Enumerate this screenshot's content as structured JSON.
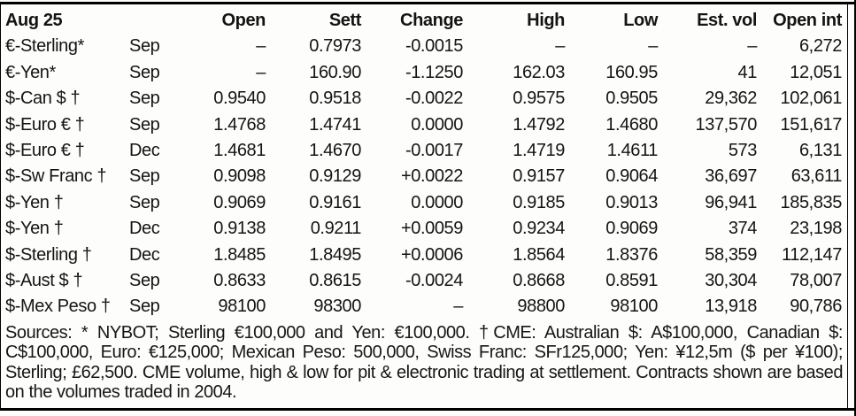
{
  "page": {
    "background_color": "#fdfdfc",
    "text_color": "#141414",
    "rule_color": "#000000"
  },
  "table": {
    "header": [
      "Aug 25",
      "",
      "Open",
      "Sett",
      "Change",
      "High",
      "Low",
      "Est. vol",
      "Open int"
    ],
    "rows": [
      [
        "€-Sterling*",
        "Sep",
        "–",
        "0.7973",
        "-0.0015",
        "–",
        "–",
        "–",
        "6,272"
      ],
      [
        "€-Yen*",
        "Sep",
        "–",
        "160.90",
        "-1.1250",
        "162.03",
        "160.95",
        "41",
        "12,051"
      ],
      [
        "$-Can $ †",
        "Sep",
        "0.9540",
        "0.9518",
        "-0.0022",
        "0.9575",
        "0.9505",
        "29,362",
        "102,061"
      ],
      [
        "$-Euro € †",
        "Sep",
        "1.4768",
        "1.4741",
        "0.0000",
        "1.4792",
        "1.4680",
        "137,570",
        "151,617"
      ],
      [
        "$-Euro € †",
        "Dec",
        "1.4681",
        "1.4670",
        "-0.0017",
        "1.4719",
        "1.4611",
        "573",
        "6,131"
      ],
      [
        "$-Sw Franc †",
        "Sep",
        "0.9098",
        "0.9129",
        "+0.0022",
        "0.9157",
        "0.9064",
        "36,697",
        "63,611"
      ],
      [
        "$-Yen †",
        "Sep",
        "0.9069",
        "0.9161",
        "0.0000",
        "0.9185",
        "0.9013",
        "96,941",
        "185,835"
      ],
      [
        "$-Yen †",
        "Dec",
        "0.9138",
        "0.9211",
        "+0.0059",
        "0.9234",
        "0.9069",
        "374",
        "23,198"
      ],
      [
        "$-Sterling †",
        "Dec",
        "1.8485",
        "1.8495",
        "+0.0006",
        "1.8564",
        "1.8376",
        "58,359",
        "112,147"
      ],
      [
        "$-Aust $ †",
        "Sep",
        "0.8633",
        "0.8615",
        "-0.0024",
        "0.8668",
        "0.8591",
        "30,304",
        "78,007"
      ],
      [
        "$-Mex Peso †",
        "Sep",
        "98100",
        "98300",
        "–",
        "98800",
        "98100",
        "13,918",
        "90,786"
      ]
    ]
  },
  "footnote": {
    "text": "Sources: * NYBOT; Sterling €100,000 and Yen: €100,000. †CME: Australian $: A$100,000, Canadian $: C$100,000, Euro: €125,000; Mexican Peso: 500,000, Swiss Franc: SFr125,000; Yen: ¥12,5m ($ per ¥100); Sterling; £62,500. CME volume, high & low for pit & electronic trading at settlement. Contracts shown are based on the volumes traded in 2004."
  }
}
